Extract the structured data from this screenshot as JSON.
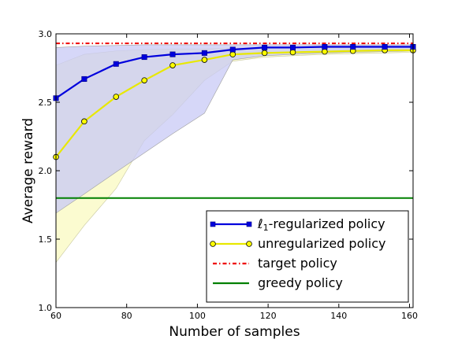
{
  "chart_data": {
    "type": "line",
    "xlabel": "Number of samples",
    "ylabel": "Average reward",
    "xlim": [
      60,
      161
    ],
    "ylim": [
      1.0,
      3.0
    ],
    "xticks": [
      "60",
      "80",
      "100",
      "120",
      "140",
      "160"
    ],
    "xtick_values": [
      60,
      80,
      100,
      120,
      140,
      160
    ],
    "yticks": [
      "1.0",
      "1.5",
      "2.0",
      "2.5",
      "3.0"
    ],
    "ytick_values": [
      1.0,
      1.5,
      2.0,
      2.5,
      3.0
    ],
    "grid": false,
    "legend_position": "bottom-right",
    "x": [
      60,
      68,
      77,
      85,
      93,
      102,
      110,
      119,
      127,
      136,
      144,
      153,
      161
    ],
    "series": [
      {
        "name": "regularized policy",
        "legend_prefix": "ℓ",
        "legend_sub": "1",
        "legend_suffix": "-regularized policy",
        "color": "#0000dd",
        "marker": "square",
        "values": [
          2.53,
          2.67,
          2.78,
          2.83,
          2.85,
          2.86,
          2.885,
          2.9,
          2.9,
          2.905,
          2.905,
          2.905,
          2.905
        ],
        "band_upper": [
          2.9,
          2.91,
          2.915,
          2.92,
          2.92,
          2.92,
          2.92,
          2.92,
          2.92,
          2.92,
          2.92,
          2.92,
          2.92
        ],
        "band_lower": [
          1.69,
          1.83,
          1.99,
          2.13,
          2.27,
          2.42,
          2.81,
          2.84,
          2.85,
          2.86,
          2.865,
          2.87,
          2.875
        ],
        "band_color": "#c8caf5"
      },
      {
        "name": "unregularized policy",
        "color": "#ffff00",
        "line_color": "#e8e800",
        "marker": "circle",
        "values": [
          2.1,
          2.36,
          2.54,
          2.66,
          2.77,
          2.81,
          2.85,
          2.86,
          2.865,
          2.87,
          2.875,
          2.88,
          2.88
        ],
        "band_upper": [
          2.77,
          2.85,
          2.875,
          2.885,
          2.89,
          2.89,
          2.895,
          2.9,
          2.9,
          2.9,
          2.9,
          2.9,
          2.9
        ],
        "band_lower": [
          1.33,
          1.6,
          1.87,
          2.22,
          2.41,
          2.66,
          2.8,
          2.83,
          2.84,
          2.85,
          2.855,
          2.86,
          2.865
        ],
        "band_color": "#fafac8"
      },
      {
        "name": "target policy",
        "color": "#ee0000",
        "style": "dashdot",
        "values": [
          2.93,
          2.93,
          2.93,
          2.93,
          2.93,
          2.93,
          2.93,
          2.93,
          2.93,
          2.93,
          2.93,
          2.93,
          2.93
        ]
      },
      {
        "name": "greedy policy",
        "color": "#008000",
        "style": "solid",
        "values": [
          1.8,
          1.8,
          1.8,
          1.8,
          1.8,
          1.8,
          1.8,
          1.8,
          1.8,
          1.8,
          1.8,
          1.8,
          1.8
        ]
      }
    ]
  }
}
